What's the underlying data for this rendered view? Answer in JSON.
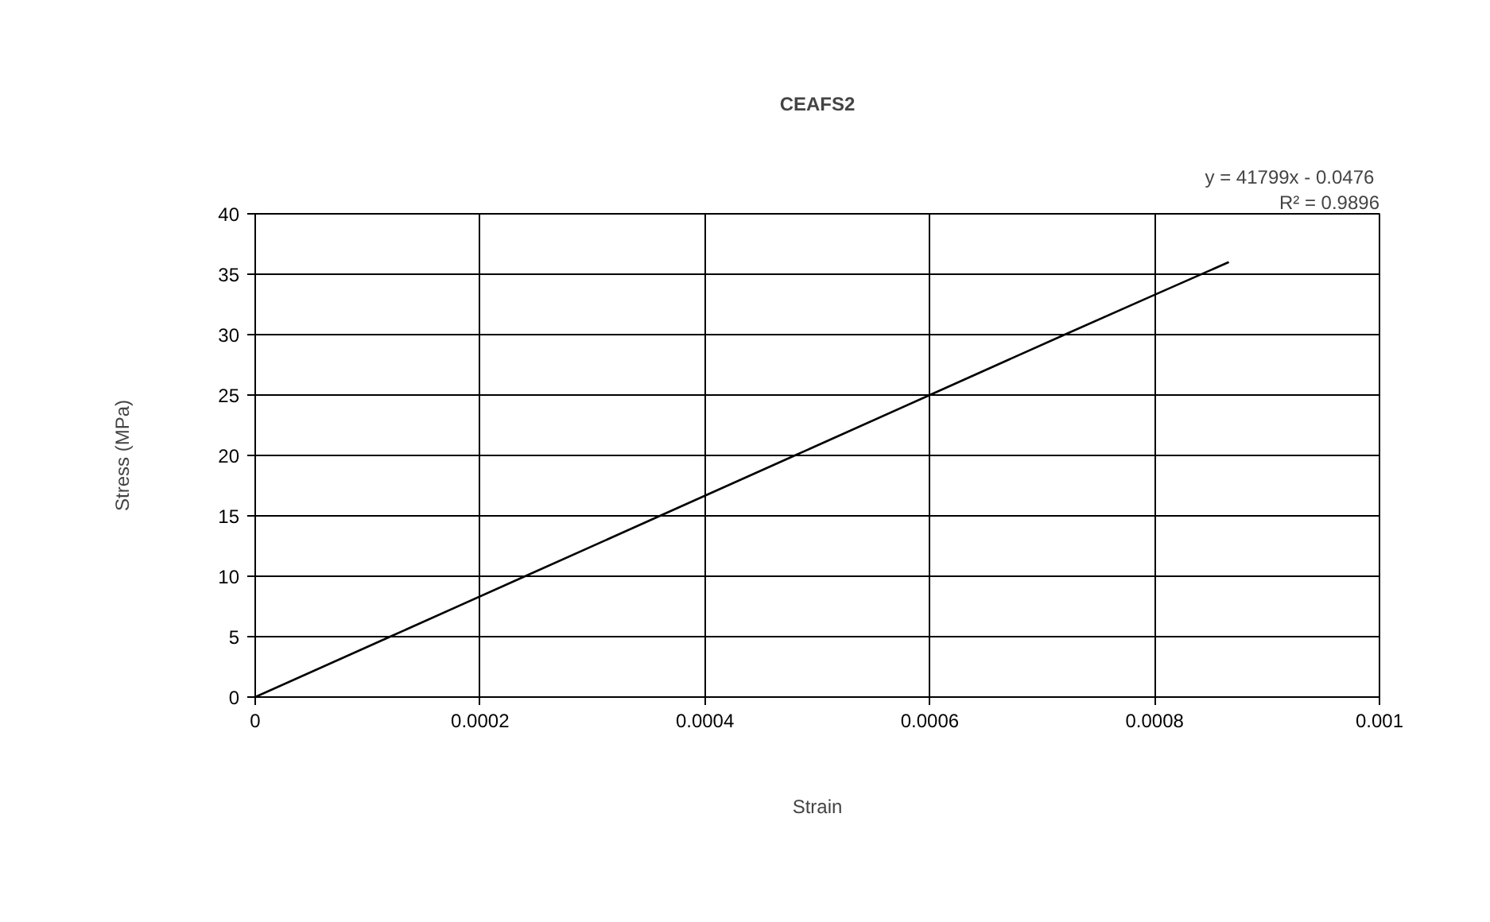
{
  "chart_data": {
    "type": "line",
    "title": "CEAFS2",
    "xlabel": "Strain",
    "ylabel": "Stress (MPa)",
    "annotations": [
      "y = 41799x  - 0.0476",
      "R² = 0.9896"
    ],
    "x": [
      0,
      0.00012,
      0.00024,
      0.00036,
      0.00048,
      0.0006,
      0.00072,
      0.0008,
      0.000866
    ],
    "series": [
      {
        "color": "#000000",
        "values": [
          0,
          5,
          10,
          15,
          20,
          25,
          30,
          33.3,
          36
        ]
      }
    ],
    "xlim": [
      0,
      0.001
    ],
    "xticks": [
      0,
      0.0002,
      0.0004,
      0.0006,
      0.0008,
      0.001
    ],
    "ylim": [
      0,
      40
    ],
    "yticks": [
      0,
      5,
      10,
      15,
      20,
      25,
      30,
      35,
      40
    ],
    "grid": true,
    "marker": "none",
    "line_style": "solid"
  }
}
